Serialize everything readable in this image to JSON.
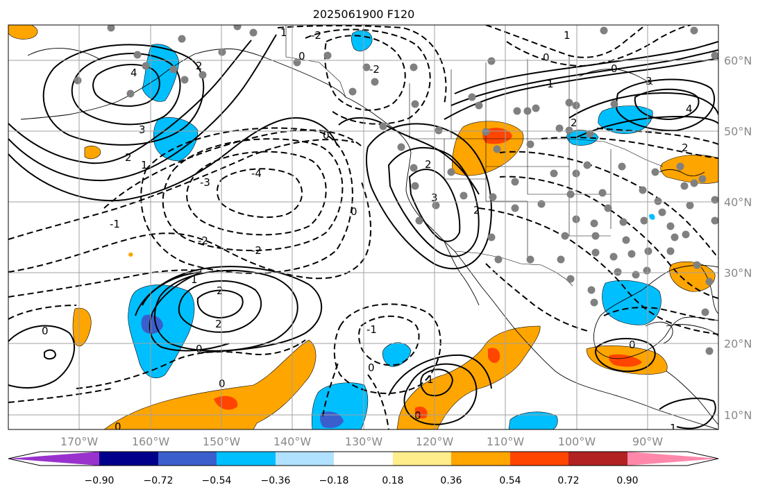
{
  "title": "2025061900 F120",
  "lat_labels": [
    "60°N",
    "50°N",
    "40°N",
    "30°N",
    "20°N",
    "10°N"
  ],
  "lon_labels": [
    "170°W",
    "160°W",
    "150°W",
    "140°W",
    "130°W",
    "120°W",
    "110°W",
    "100°W",
    "90°W"
  ],
  "colorbar": {
    "tick_labels": [
      "−0.90",
      "−0.72",
      "−0.54",
      "−0.36",
      "−0.18",
      "0.18",
      "0.36",
      "0.54",
      "0.72",
      "0.90"
    ],
    "colors": [
      "#9932cc",
      "#00008b",
      "#3a5fcd",
      "#00bfff",
      "#b0e2ff",
      "#ffffff",
      "#ffec8b",
      "#ffa500",
      "#ff4500",
      "#b22222",
      "#ff88aa"
    ]
  },
  "fill_colors": {
    "orange": "#ffa500",
    "red": "#ff4500",
    "deepskyblue": "#00bfff",
    "royalblue": "#3a5fcd"
  },
  "station_color": "#808080",
  "contour_labels": [
    "4",
    "3",
    "2",
    "1",
    "0",
    "-1",
    "-2",
    "-3",
    "-4"
  ]
}
